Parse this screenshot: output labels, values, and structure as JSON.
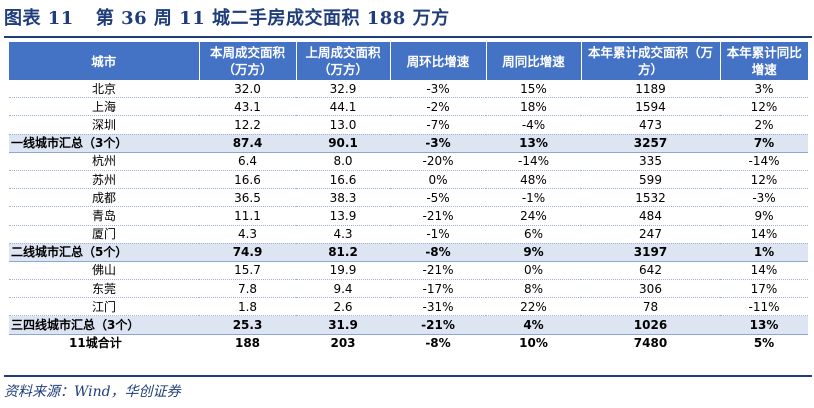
{
  "title": {
    "label": "图表 11",
    "text": "第 36 周 11 城二手房成交面积 188 万方"
  },
  "table": {
    "headers": [
      "城市",
      "本周成交面积（万方）",
      "上周成交面积（万方）",
      "周环比增速",
      "周同比增速",
      "本年累计成交面积（万方）",
      "本年累计同比增速"
    ],
    "rows": [
      {
        "city": "北京",
        "this_week": "32.0",
        "last_week": "32.9",
        "wow": "-3%",
        "yoy": "15%",
        "ytd": "1189",
        "ytd_yoy": "3%",
        "type": "normal"
      },
      {
        "city": "上海",
        "this_week": "43.1",
        "last_week": "44.1",
        "wow": "-2%",
        "yoy": "18%",
        "ytd": "1594",
        "ytd_yoy": "12%",
        "type": "normal"
      },
      {
        "city": "深圳",
        "this_week": "12.2",
        "last_week": "13.0",
        "wow": "-7%",
        "yoy": "-4%",
        "ytd": "473",
        "ytd_yoy": "2%",
        "type": "normal"
      },
      {
        "city": "一线城市汇总（3个）",
        "this_week": "87.4",
        "last_week": "90.1",
        "wow": "-3%",
        "yoy": "13%",
        "ytd": "3257",
        "ytd_yoy": "7%",
        "type": "sub"
      },
      {
        "city": "杭州",
        "this_week": "6.4",
        "last_week": "8.0",
        "wow": "-20%",
        "yoy": "-14%",
        "ytd": "335",
        "ytd_yoy": "-14%",
        "type": "normal"
      },
      {
        "city": "苏州",
        "this_week": "16.6",
        "last_week": "16.6",
        "wow": "0%",
        "yoy": "48%",
        "ytd": "599",
        "ytd_yoy": "12%",
        "type": "normal"
      },
      {
        "city": "成都",
        "this_week": "36.5",
        "last_week": "38.3",
        "wow": "-5%",
        "yoy": "-1%",
        "ytd": "1532",
        "ytd_yoy": "-3%",
        "type": "normal"
      },
      {
        "city": "青岛",
        "this_week": "11.1",
        "last_week": "13.9",
        "wow": "-21%",
        "yoy": "24%",
        "ytd": "484",
        "ytd_yoy": "9%",
        "type": "normal"
      },
      {
        "city": "厦门",
        "this_week": "4.3",
        "last_week": "4.3",
        "wow": "-1%",
        "yoy": "6%",
        "ytd": "247",
        "ytd_yoy": "14%",
        "type": "normal"
      },
      {
        "city": "二线城市汇总（5个）",
        "this_week": "74.9",
        "last_week": "81.2",
        "wow": "-8%",
        "yoy": "9%",
        "ytd": "3197",
        "ytd_yoy": "1%",
        "type": "sub"
      },
      {
        "city": "佛山",
        "this_week": "15.7",
        "last_week": "19.9",
        "wow": "-21%",
        "yoy": "0%",
        "ytd": "642",
        "ytd_yoy": "14%",
        "type": "normal"
      },
      {
        "city": "东莞",
        "this_week": "7.8",
        "last_week": "9.4",
        "wow": "-17%",
        "yoy": "8%",
        "ytd": "306",
        "ytd_yoy": "17%",
        "type": "normal"
      },
      {
        "city": "江门",
        "this_week": "1.8",
        "last_week": "2.6",
        "wow": "-31%",
        "yoy": "22%",
        "ytd": "78",
        "ytd_yoy": "-11%",
        "type": "normal"
      },
      {
        "city": "三四线城市汇总（3个）",
        "this_week": "25.3",
        "last_week": "31.9",
        "wow": "-21%",
        "yoy": "4%",
        "ytd": "1026",
        "ytd_yoy": "13%",
        "type": "sub"
      },
      {
        "city": "11城合计",
        "this_week": "188",
        "last_week": "203",
        "wow": "-8%",
        "yoy": "10%",
        "ytd": "7480",
        "ytd_yoy": "5%",
        "type": "total"
      }
    ]
  },
  "source": "资料来源：Wind，华创证券",
  "colors": {
    "header_bg": "#4472c4",
    "subtotal_bg": "#dde5f3",
    "title": "#1f3d7a"
  }
}
